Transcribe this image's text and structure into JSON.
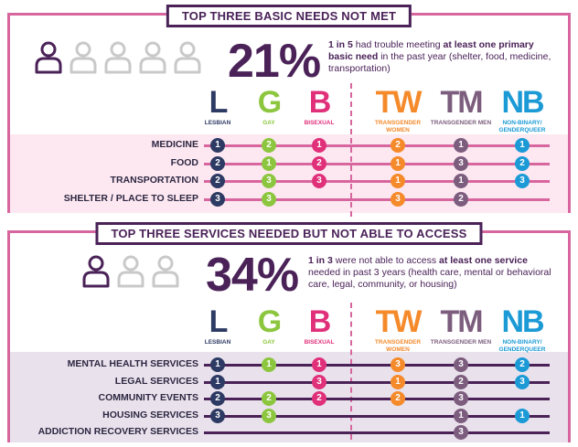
{
  "colors": {
    "purple": "#4a2258",
    "pink": "#d8669e",
    "lesbian": "#2d3a63",
    "gay": "#8cc63e",
    "bisexual": "#e0307a",
    "transgender_women": "#f58a2b",
    "transgender_men": "#7c5d7e",
    "nonbinary": "#1b9ad6",
    "band1": "#fde8f1",
    "band2": "#e9e2ec",
    "line1": "#d8669e",
    "line2": "#4a2258"
  },
  "icons": [
    "person-icon-filled",
    "person-icon-outline"
  ],
  "groups": [
    {
      "abbr": "L",
      "name": "LESBIAN",
      "color": "#2d3a63"
    },
    {
      "abbr": "G",
      "name": "GAY",
      "color": "#8cc63e"
    },
    {
      "abbr": "B",
      "name": "BISEXUAL",
      "color": "#e0307a"
    },
    {
      "abbr": "TW",
      "name": "TRANSGENDER WOMEN",
      "color": "#f58a2b"
    },
    {
      "abbr": "TM",
      "name": "TRANSGENDER MEN",
      "color": "#7c5d7e"
    },
    {
      "abbr": "NB",
      "name": "NON-BINARY/ GENDERQUEER",
      "color": "#1b9ad6"
    }
  ],
  "section1": {
    "title": "TOP THREE BASIC NEEDS NOT MET",
    "people_total": 5,
    "people_filled": 1,
    "percent": "21%",
    "desc_bold1": "1 in 5",
    "desc_text1": " had trouble meeting ",
    "desc_bold2": "at least one primary basic need",
    "desc_text2": " in the past year (shelter, food, medicine, transportation)",
    "rows": [
      {
        "label": "MEDICINE",
        "ranks": [
          1,
          2,
          1,
          2,
          1,
          1
        ]
      },
      {
        "label": "FOOD",
        "ranks": [
          2,
          1,
          2,
          1,
          3,
          2
        ]
      },
      {
        "label": "TRANSPORTATION",
        "ranks": [
          2,
          3,
          3,
          1,
          1,
          3
        ]
      },
      {
        "label": "SHELTER / PLACE TO SLEEP",
        "ranks": [
          3,
          3,
          null,
          3,
          2,
          null
        ]
      }
    ]
  },
  "section2": {
    "title": "TOP THREE SERVICES NEEDED BUT NOT ABLE TO ACCESS",
    "people_total": 3,
    "people_filled": 1,
    "percent": "34%",
    "desc_bold1": "1 in 3",
    "desc_text1": " were not able to access ",
    "desc_bold2": "at least one service",
    "desc_text2": " needed in past 3 years (health care, mental or behavioral care, legal, community, or housing)",
    "rows": [
      {
        "label": "MENTAL HEALTH SERVICES",
        "ranks": [
          1,
          1,
          1,
          3,
          3,
          2
        ]
      },
      {
        "label": "LEGAL SERVICES",
        "ranks": [
          1,
          null,
          3,
          1,
          2,
          3
        ]
      },
      {
        "label": "COMMUNITY EVENTS",
        "ranks": [
          2,
          2,
          2,
          2,
          3,
          null
        ]
      },
      {
        "label": "HOUSING SERVICES",
        "ranks": [
          3,
          3,
          null,
          null,
          1,
          1
        ]
      },
      {
        "label": "ADDICTION RECOVERY SERVICES",
        "ranks": [
          null,
          null,
          null,
          null,
          3,
          null
        ]
      }
    ]
  }
}
